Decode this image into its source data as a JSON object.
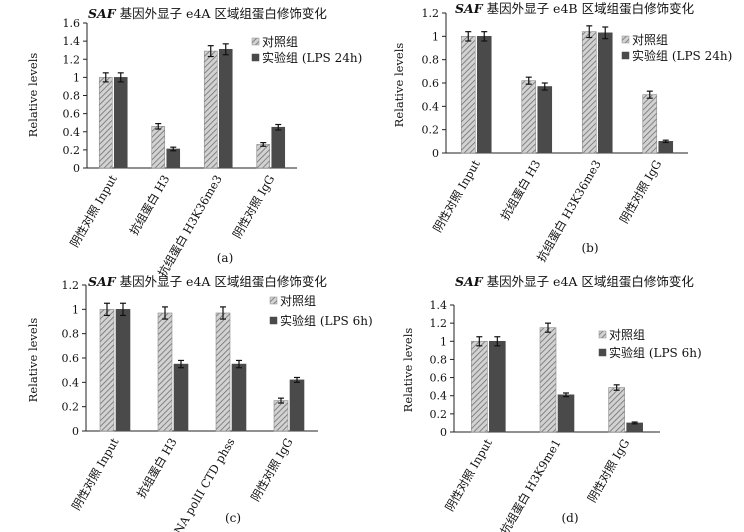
{
  "figure": {
    "colors": {
      "control": "#bdbdbd",
      "control_hatch": "#6f6f6f",
      "experiment": "#4a4a4a",
      "axis": "#222222",
      "error": "#111111"
    }
  },
  "chart_data": [
    {
      "type": "bar",
      "panel_label": "(a)",
      "title_gene": "SAF",
      "title": " 基因外显子 e4A 区域组蛋白修饰变化",
      "ylabel": "Relative levels",
      "ylim": [
        0,
        1.6
      ],
      "yticks": [
        0,
        0.2,
        0.4,
        0.6,
        0.8,
        1,
        1.2,
        1.4,
        1.6
      ],
      "categories": [
        "阴性对照 Input",
        "抗组蛋白 H3",
        "抗组蛋白 H3K36me3",
        "阴性对照 IgG"
      ],
      "series": [
        {
          "name": "对照组",
          "values": [
            1.0,
            0.46,
            1.29,
            0.26
          ],
          "errors": [
            0.05,
            0.03,
            0.06,
            0.02
          ]
        },
        {
          "name": "实验组 (LPS 24h)",
          "values": [
            1.0,
            0.21,
            1.31,
            0.45
          ],
          "errors": [
            0.05,
            0.02,
            0.06,
            0.03
          ]
        }
      ]
    },
    {
      "type": "bar",
      "panel_label": "(b)",
      "title_gene": "SAF",
      "title": " 基因外显子 e4B 区域组蛋白修饰变化",
      "ylabel": "Relative levels",
      "ylim": [
        0,
        1.2
      ],
      "yticks": [
        0,
        0.2,
        0.4,
        0.6,
        0.8,
        1,
        1.2
      ],
      "categories": [
        "阴性对照 Input",
        "抗组蛋白 H3",
        "抗组蛋白 H3K36me3",
        "阴性对照 IgG"
      ],
      "series": [
        {
          "name": "对照组",
          "values": [
            1.0,
            0.62,
            1.04,
            0.5
          ],
          "errors": [
            0.04,
            0.03,
            0.05,
            0.03
          ]
        },
        {
          "name": "实验组 (LPS 24h)",
          "values": [
            1.0,
            0.57,
            1.03,
            0.1
          ],
          "errors": [
            0.04,
            0.03,
            0.05,
            0.01
          ]
        }
      ]
    },
    {
      "type": "bar",
      "panel_label": "(c)",
      "title_gene": "SAF",
      "title": " 基因外显子 e4A 区域组蛋白修饰变化",
      "ylabel": "Relative levels",
      "ylim": [
        0,
        1.2
      ],
      "yticks": [
        0,
        0.2,
        0.4,
        0.6,
        0.8,
        1,
        1.2
      ],
      "categories": [
        "阴性对照 Input",
        "抗组蛋白 H3",
        "抗 RNA polII CTD phss",
        "阴性对照 IgG"
      ],
      "series": [
        {
          "name": "对照组",
          "values": [
            1.0,
            0.97,
            0.97,
            0.25
          ],
          "errors": [
            0.05,
            0.05,
            0.05,
            0.02
          ]
        },
        {
          "name": "实验组 (LPS 6h)",
          "values": [
            1.0,
            0.55,
            0.55,
            0.42
          ],
          "errors": [
            0.05,
            0.03,
            0.03,
            0.02
          ]
        }
      ]
    },
    {
      "type": "bar",
      "panel_label": "(d)",
      "title_gene": "SAF",
      "title": " 基因外显子 e4A 区域组蛋白修饰变化",
      "ylabel": "Relative levels",
      "ylim": [
        0,
        1.4
      ],
      "yticks": [
        0,
        0.2,
        0.4,
        0.6,
        0.8,
        1,
        1.2,
        1.4
      ],
      "categories": [
        "阴性对照 Input",
        "抗组蛋白 H3K9me1",
        "阴性对照 IgG"
      ],
      "series": [
        {
          "name": "对照组",
          "values": [
            1.0,
            1.15,
            0.49
          ],
          "errors": [
            0.05,
            0.05,
            0.03
          ]
        },
        {
          "name": "实验组 (LPS 6h)",
          "values": [
            1.0,
            0.41,
            0.1
          ],
          "errors": [
            0.05,
            0.02,
            0.01
          ]
        }
      ]
    }
  ]
}
